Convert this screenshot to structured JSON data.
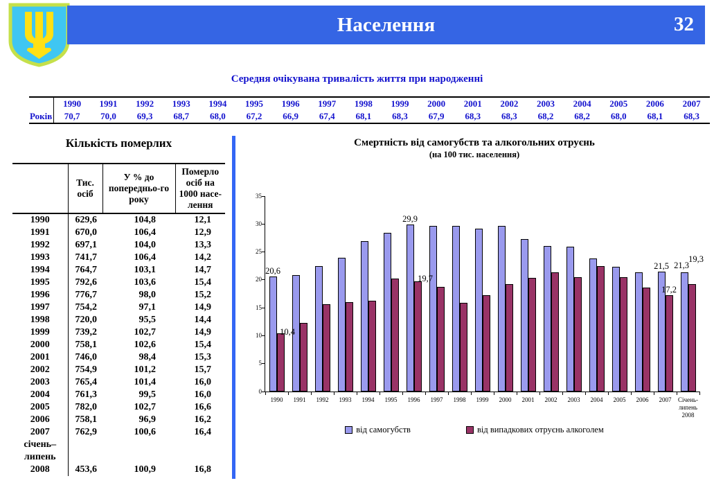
{
  "header": {
    "title": "Населення",
    "page_number": "32",
    "bar_color": "#3565E4"
  },
  "colors": {
    "header_blue": "#3565E4",
    "divider_blue": "#3366F5",
    "table_text_blue": "#1413CE",
    "bar_suicides": "#9A9AEE",
    "bar_alcohol": "#993366"
  },
  "emblem": {
    "name": "ukraine-coat-of-arms",
    "shield_color": "#3FC6F2",
    "trident_color": "#FFE014",
    "border_color": "#C5E04A"
  },
  "life_expectancy": {
    "title": "Середня очікувана тривалість життя при народженні",
    "row_label": "Років",
    "years": [
      "1990",
      "1991",
      "1992",
      "1993",
      "1994",
      "1995",
      "1996",
      "1997",
      "1998",
      "1999",
      "2000",
      "2001",
      "2002",
      "2003",
      "2004",
      "2005",
      "2006",
      "2007"
    ],
    "values": [
      "70,7",
      "70,0",
      "69,3",
      "68,7",
      "68,0",
      "67,2",
      "66,9",
      "67,4",
      "68,1",
      "68,3",
      "67,9",
      "68,3",
      "68,3",
      "68,2",
      "68,2",
      "68,0",
      "68,1",
      "68,3"
    ]
  },
  "deaths_table": {
    "title": "Кількість померлих",
    "columns": [
      "",
      "Тис. осіб",
      "У % до попередньо-го року",
      "Померло осіб на 1000 насе-лення"
    ],
    "rows": [
      [
        "1990",
        "629,6",
        "104,8",
        "12,1"
      ],
      [
        "1991",
        "670,0",
        "106,4",
        "12,9"
      ],
      [
        "1992",
        "697,1",
        "104,0",
        "13,3"
      ],
      [
        "1993",
        "741,7",
        "106,4",
        "14,2"
      ],
      [
        "1994",
        "764,7",
        "103,1",
        "14,7"
      ],
      [
        "1995",
        "792,6",
        "103,6",
        "15,4"
      ],
      [
        "1996",
        "776,7",
        "98,0",
        "15,2"
      ],
      [
        "1997",
        "754,2",
        "97,1",
        "14,9"
      ],
      [
        "1998",
        "720,0",
        "95,5",
        "14,4"
      ],
      [
        "1999",
        "739,2",
        "102,7",
        "14,9"
      ],
      [
        "2000",
        "758,1",
        "102,6",
        "15,4"
      ],
      [
        "2001",
        "746,0",
        "98,4",
        "15,3"
      ],
      [
        "2002",
        "754,9",
        "101,2",
        "15,7"
      ],
      [
        "2003",
        "765,4",
        "101,4",
        "16,0"
      ],
      [
        "2004",
        "761,3",
        "99,5",
        "16,0"
      ],
      [
        "2005",
        "782,0",
        "102,7",
        "16,6"
      ],
      [
        "2006",
        "758,1",
        "96,9",
        "16,2"
      ],
      [
        "2007",
        "762,9",
        "100,6",
        "16,4"
      ],
      [
        "січень–\nлипень\n2008",
        "453,6",
        "100,9",
        "16,8"
      ]
    ]
  },
  "chart_data": {
    "type": "bar",
    "title": "Смертність від самогубств та алкогольних отруєнь",
    "subtitle": "(на 100 тис. населення)",
    "categories": [
      "1990",
      "1991",
      "1992",
      "1993",
      "1994",
      "1995",
      "1996",
      "1997",
      "1998",
      "1999",
      "2000",
      "2001",
      "2002",
      "2003",
      "2004",
      "2005",
      "2006",
      "2007",
      "Січень-\nлипень\n2008"
    ],
    "series": [
      {
        "name": "від самогубств",
        "color": "#9A9AEE",
        "values": [
          20.6,
          20.8,
          22.5,
          24.0,
          26.9,
          28.4,
          29.9,
          29.7,
          29.7,
          29.2,
          29.7,
          27.3,
          26.1,
          26.0,
          23.8,
          22.4,
          21.4,
          21.5,
          21.3
        ]
      },
      {
        "name": "від випадкових отруєнь алкоголем",
        "color": "#993366",
        "values": [
          10.4,
          12.3,
          15.7,
          16.0,
          16.2,
          20.2,
          19.7,
          18.7,
          15.9,
          17.3,
          19.2,
          20.3,
          21.4,
          20.5,
          22.5,
          20.5,
          18.6,
          17.2,
          19.3
        ]
      }
    ],
    "point_labels": [
      {
        "series": 0,
        "index": 0,
        "text": "20,6"
      },
      {
        "series": 1,
        "index": 0,
        "text": "10,4"
      },
      {
        "series": 0,
        "index": 6,
        "text": "29,9"
      },
      {
        "series": 1,
        "index": 6,
        "text": "19,7"
      },
      {
        "series": 0,
        "index": 17,
        "text": "21,5"
      },
      {
        "series": 1,
        "index": 17,
        "text": "17,2"
      },
      {
        "series": 0,
        "index": 18,
        "text": "21,3"
      },
      {
        "series": 1,
        "index": 18,
        "text": "19,3"
      }
    ],
    "xlabel": "",
    "ylabel": "",
    "ylim": [
      0,
      35
    ],
    "ytick_step": 5,
    "grid": false,
    "legend_position": "bottom"
  }
}
